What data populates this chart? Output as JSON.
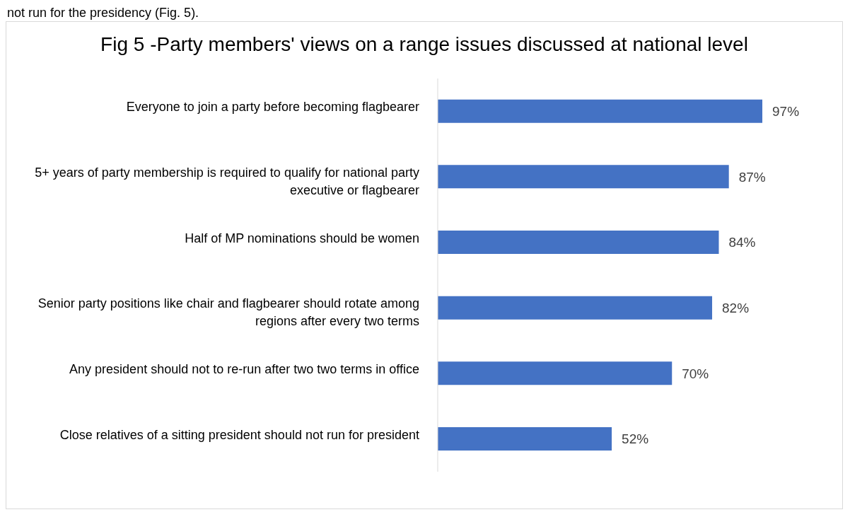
{
  "chart_data": {
    "type": "bar",
    "orientation": "horizontal",
    "title": "Fig 5 -Party members' views on a range issues discussed at national level",
    "categories": [
      "Everyone to join a party before becoming flagbearer",
      "5+ years of party membership is required to qualify for national party executive or flagbearer",
      "Half of MP nominations should be women",
      "Senior party positions like chair and flagbearer should rotate among regions after every two terms",
      "Any president should not to re-run after two two terms in office",
      "Close relatives of a sitting president should not run for president"
    ],
    "values": [
      97,
      87,
      84,
      82,
      70,
      52
    ],
    "value_labels": [
      "97%",
      "87%",
      "84%",
      "82%",
      "70%",
      "52%"
    ],
    "color": "#4472c4",
    "annotations": [
      "not run for the presidency (Fig. 5)."
    ]
  }
}
